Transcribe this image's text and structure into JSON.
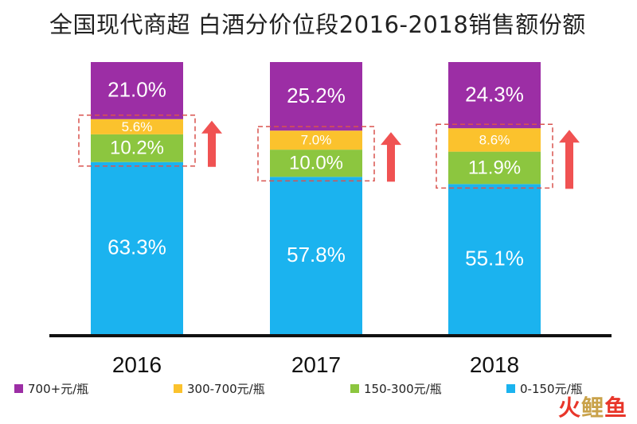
{
  "chart_data": {
    "type": "bar",
    "stacked": true,
    "title": "全国现代商超 白酒分价位段2016-2018销售额份额",
    "categories": [
      "2016",
      "2017",
      "2018"
    ],
    "series": [
      {
        "name": "0-150元/瓶",
        "color": "#1bb3ef",
        "values": [
          63.3,
          57.8,
          55.1
        ],
        "labels": [
          "63.3%",
          "57.8%",
          "55.1%"
        ]
      },
      {
        "name": "150-300元/瓶",
        "color": "#8cc63f",
        "values": [
          10.2,
          10.0,
          11.9
        ],
        "labels": [
          "10.2%",
          "10.0%",
          "11.9%"
        ]
      },
      {
        "name": "300-700元/瓶",
        "color": "#fbc22d",
        "values": [
          5.6,
          7.0,
          8.6
        ],
        "labels": [
          "5.6%",
          "7.0%",
          "8.6%"
        ]
      },
      {
        "name": "700+元/瓶",
        "color": "#9c2ea5",
        "values": [
          21.0,
          25.2,
          24.3
        ],
        "labels": [
          "21.0%",
          "25.2%",
          "24.3%"
        ]
      }
    ],
    "legend_order": [
      "700+元/瓶",
      "300-700元/瓶",
      "150-300元/瓶",
      "0-150元/瓶"
    ],
    "legend_position": "bottom",
    "highlight": {
      "series": [
        "150-300元/瓶",
        "300-700元/瓶"
      ],
      "style": "dashed-box",
      "arrow": "up",
      "arrow_color": "#f05252",
      "box_color": "#d9534f"
    },
    "ylim": [
      0,
      100
    ],
    "grid": false
  },
  "watermark": {
    "part1": "火",
    "part2": "鲤",
    "part3": "鱼"
  }
}
